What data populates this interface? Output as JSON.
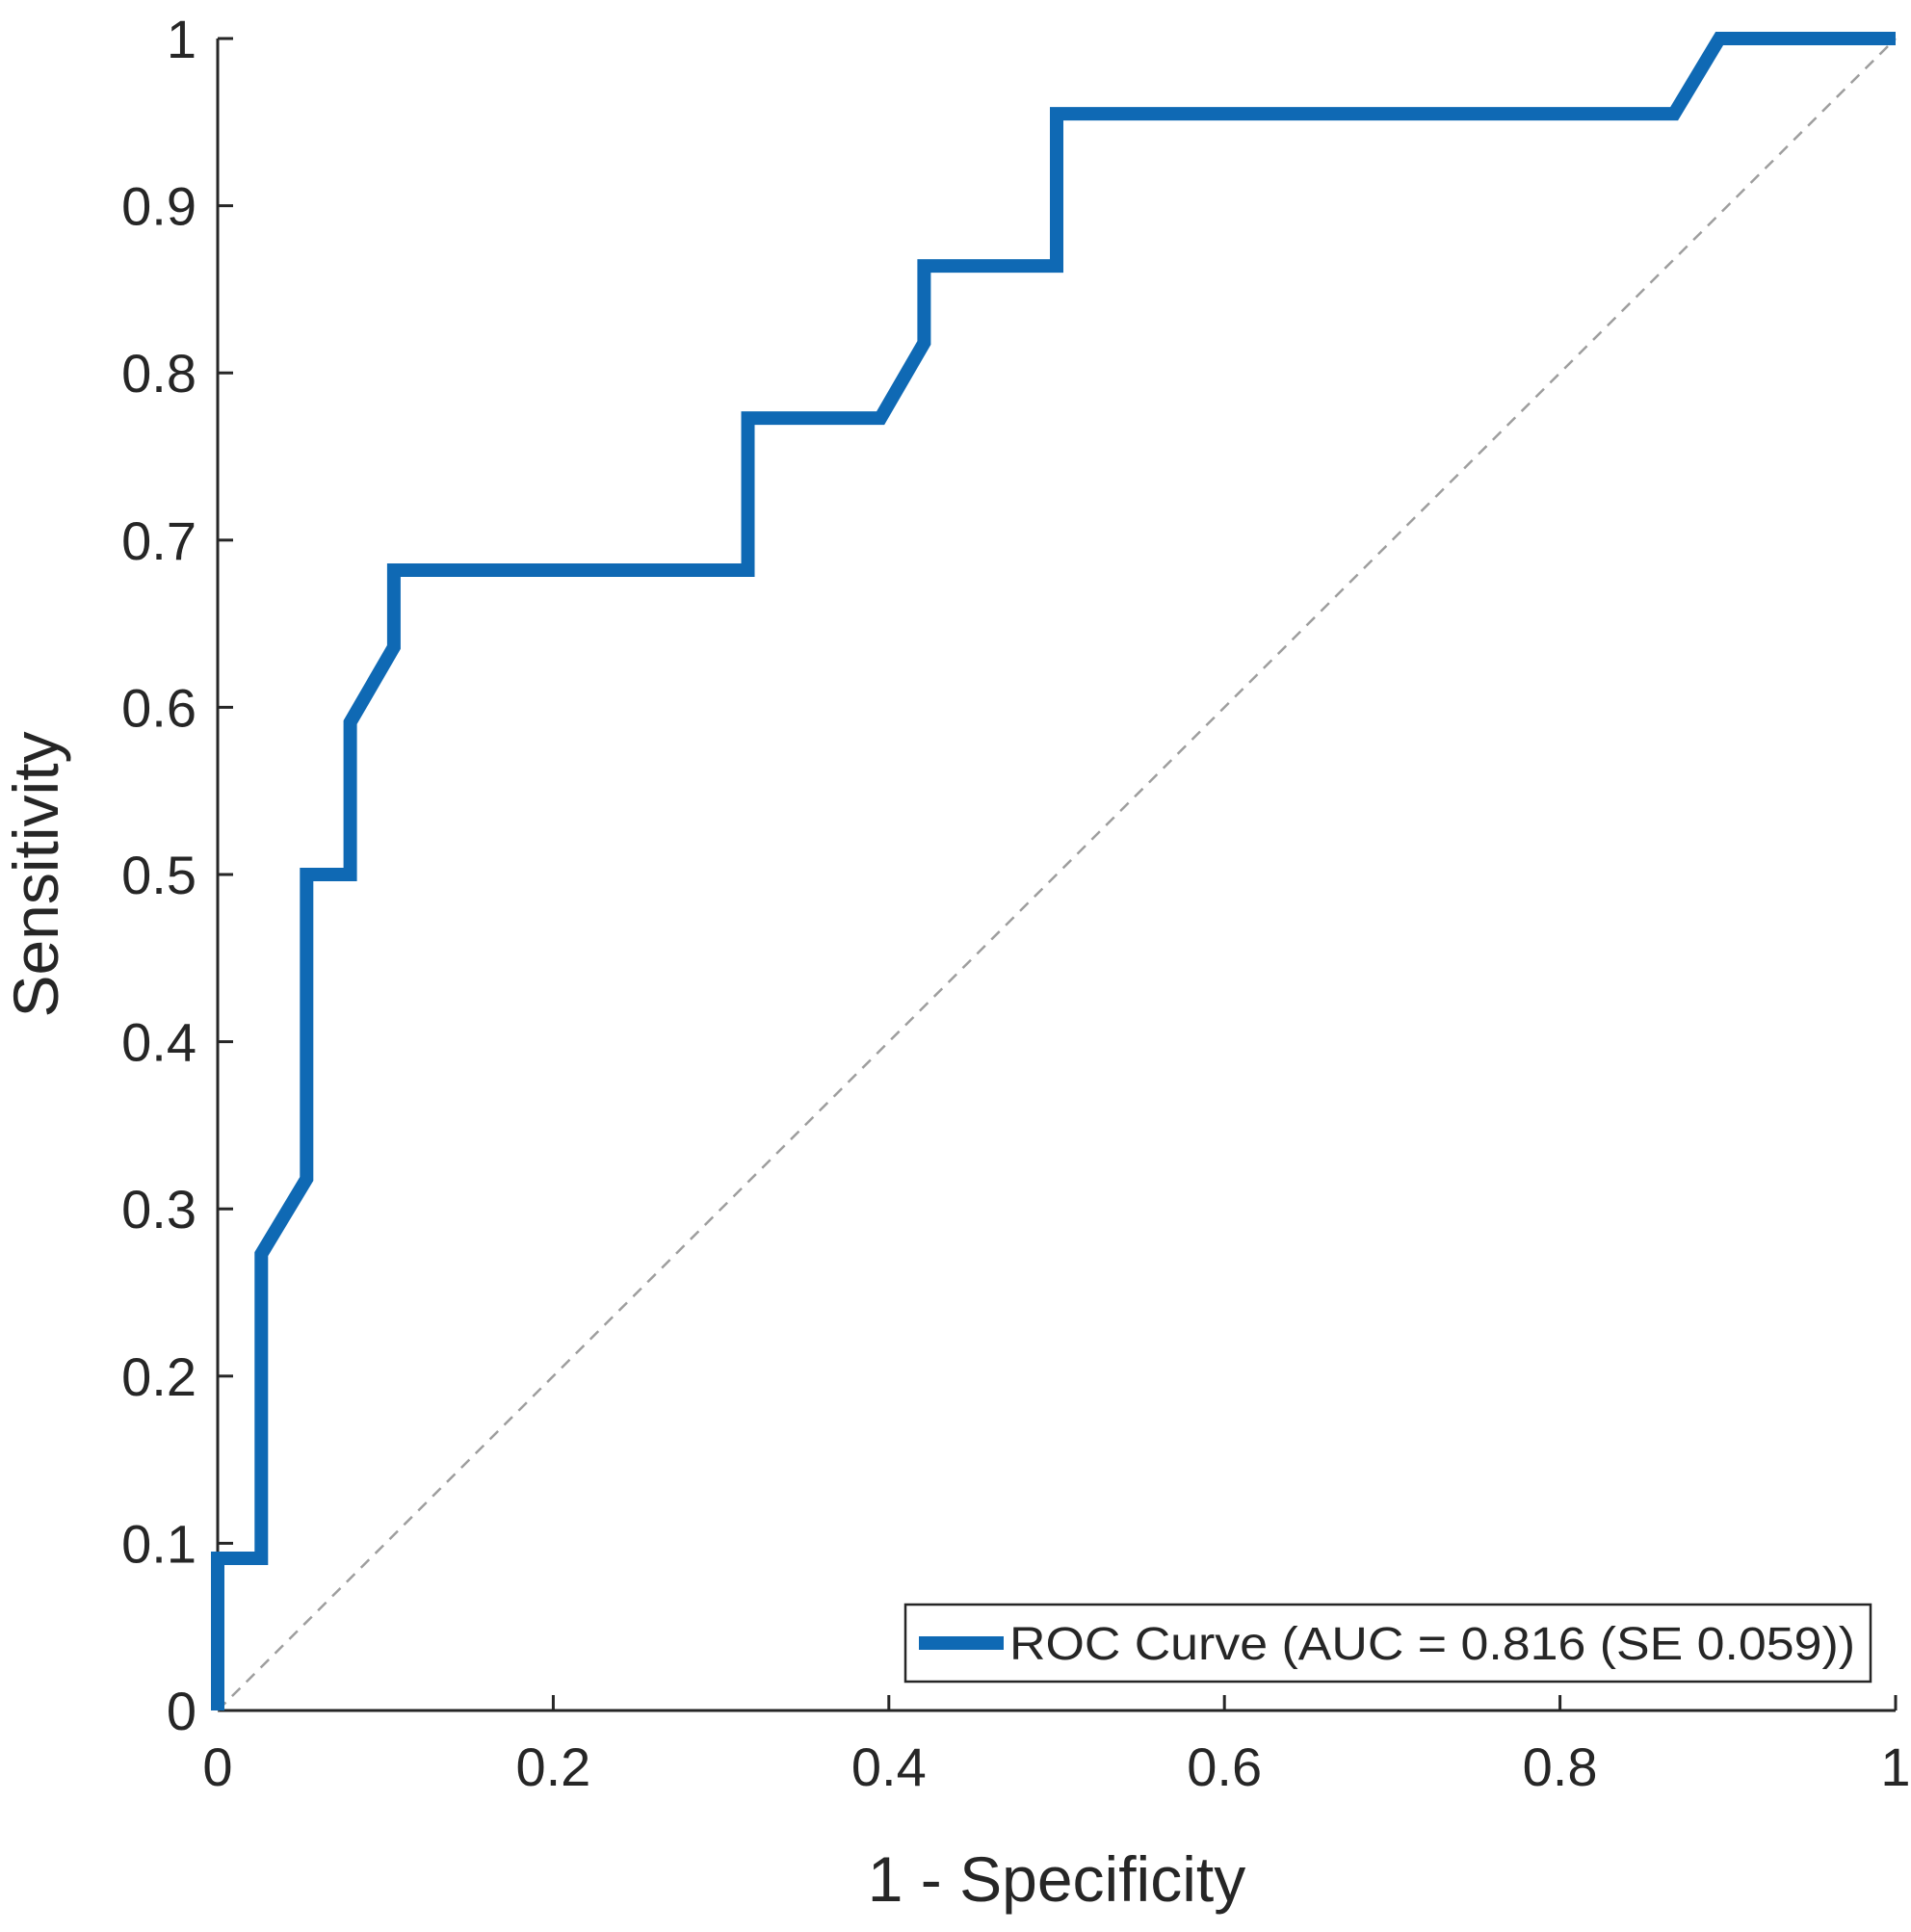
{
  "chart_data": {
    "type": "line",
    "xlabel": "1 - Specificity",
    "ylabel": "Sensitivity",
    "xlim": [
      0,
      1
    ],
    "ylim": [
      0,
      1
    ],
    "x_ticks": [
      "0",
      "0.2",
      "0.4",
      "0.6",
      "0.8",
      "1"
    ],
    "y_ticks": [
      "0",
      "0.1",
      "0.2",
      "0.3",
      "0.4",
      "0.5",
      "0.6",
      "0.7",
      "0.8",
      "0.9",
      "1"
    ],
    "grid": false,
    "legend_position": "bottom-right",
    "colors": {
      "roc": "#0F69B4",
      "reference": "#9E9E9E",
      "axis": "#262626"
    },
    "series": [
      {
        "name": "ROC Curve (AUC = 0.816 (SE 0.059))",
        "x": [
          0,
          0,
          0.026,
          0.026,
          0.053,
          0.053,
          0.079,
          0.079,
          0.105,
          0.105,
          0.316,
          0.316,
          0.395,
          0.421,
          0.421,
          0.5,
          0.5,
          0.868,
          0.895,
          1
        ],
        "y": [
          0,
          0.091,
          0.091,
          0.273,
          0.318,
          0.5,
          0.5,
          0.591,
          0.636,
          0.682,
          0.682,
          0.773,
          0.773,
          0.818,
          0.864,
          0.864,
          0.955,
          0.955,
          1,
          1
        ]
      },
      {
        "x": [
          0,
          1
        ],
        "y": [
          0,
          1
        ]
      }
    ]
  }
}
